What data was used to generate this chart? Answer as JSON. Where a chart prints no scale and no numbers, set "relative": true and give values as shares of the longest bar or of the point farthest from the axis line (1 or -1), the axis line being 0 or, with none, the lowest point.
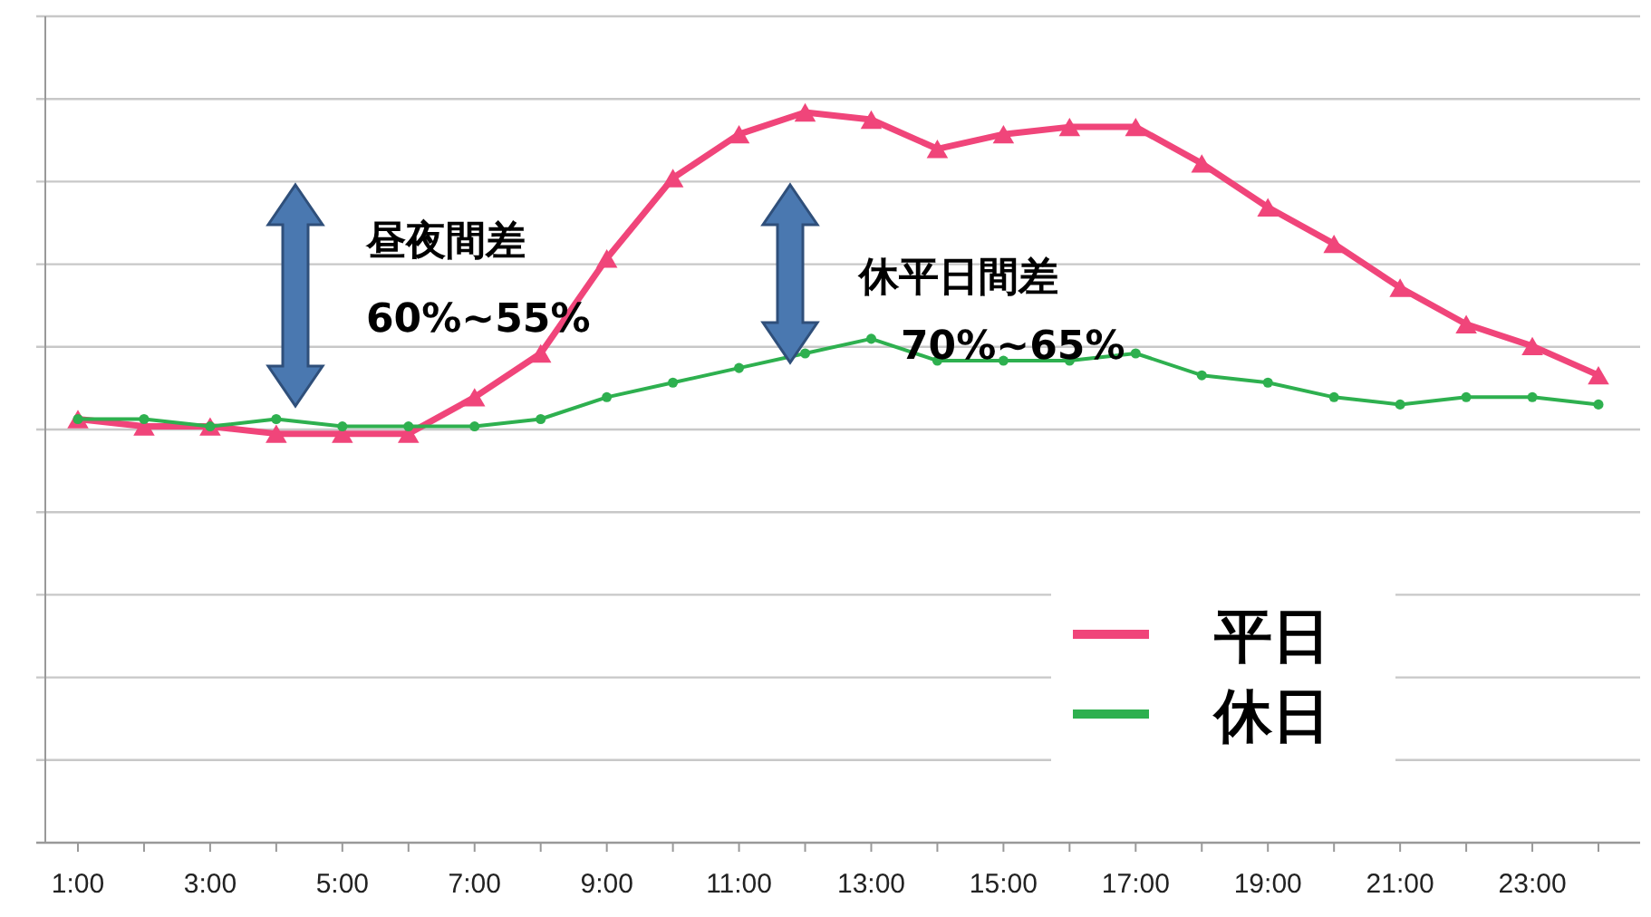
{
  "chart_data": {
    "type": "line",
    "relative": true,
    "grid": "y",
    "legend": "bottom right",
    "categories": [
      "1:00",
      null,
      "3:00",
      null,
      "5:00",
      null,
      "7:00",
      null,
      "9:00",
      null,
      "11:00",
      null,
      "13:00",
      null,
      "15:00",
      null,
      "17:00",
      null,
      "19:00",
      null,
      "21:00",
      null,
      "23:00",
      null
    ],
    "series": [
      {
        "name": "平日",
        "color": "#f0457a",
        "marker": "triangle",
        "values": [
          0.58,
          0.57,
          0.57,
          0.56,
          0.56,
          0.56,
          0.61,
          0.67,
          0.8,
          0.91,
          0.97,
          1,
          0.99,
          0.95,
          0.97,
          0.98,
          0.98,
          0.93,
          0.87,
          0.82,
          0.76,
          0.71,
          0.68,
          0.64
        ]
      },
      {
        "name": "休日",
        "color": "#2eb04f",
        "marker": "circle",
        "values": [
          0.58,
          0.58,
          0.57,
          0.58,
          0.57,
          0.57,
          0.57,
          0.58,
          0.61,
          0.63,
          0.65,
          0.67,
          0.69,
          0.66,
          0.66,
          0.66,
          0.67,
          0.64,
          0.63,
          0.61,
          0.6,
          0.61,
          0.61,
          0.6
        ]
      }
    ],
    "annotations": [
      "昼夜間差",
      "60%~55%",
      "休平日間差",
      "70%~65%"
    ]
  }
}
